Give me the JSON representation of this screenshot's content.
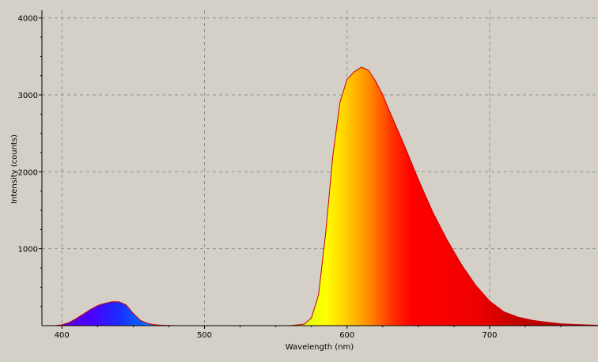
{
  "chart_data": {
    "type": "area",
    "title": "",
    "xlabel": "Wavelength (nm)",
    "ylabel": "Intensity (counts)",
    "xlim": [
      386,
      776
    ],
    "ylim": [
      0,
      4100
    ],
    "x_ticks": [
      400,
      500,
      600,
      700
    ],
    "y_ticks": [
      1000,
      2000,
      3000,
      4000
    ],
    "grid": true,
    "legend": "none",
    "fill": "spectral colors by wavelength",
    "series": [
      {
        "x": [
          386,
          390,
          395,
          400,
          405,
          410,
          415,
          420,
          425,
          430,
          435,
          440,
          445,
          450,
          455,
          460,
          465,
          470,
          480,
          500,
          520,
          540,
          560,
          570,
          575,
          580,
          585,
          590,
          595,
          600,
          605,
          610,
          615,
          620,
          625,
          630,
          640,
          650,
          660,
          670,
          680,
          690,
          700,
          710,
          720,
          730,
          740,
          750,
          760,
          776
        ],
        "values": [
          0,
          0,
          0,
          10,
          40,
          90,
          150,
          210,
          260,
          290,
          310,
          310,
          270,
          160,
          70,
          30,
          12,
          5,
          0,
          0,
          0,
          0,
          0,
          20,
          100,
          400,
          1200,
          2200,
          2900,
          3200,
          3300,
          3360,
          3320,
          3180,
          3000,
          2780,
          2350,
          1900,
          1480,
          1120,
          800,
          530,
          320,
          180,
          110,
          70,
          45,
          25,
          15,
          5
        ]
      }
    ]
  }
}
